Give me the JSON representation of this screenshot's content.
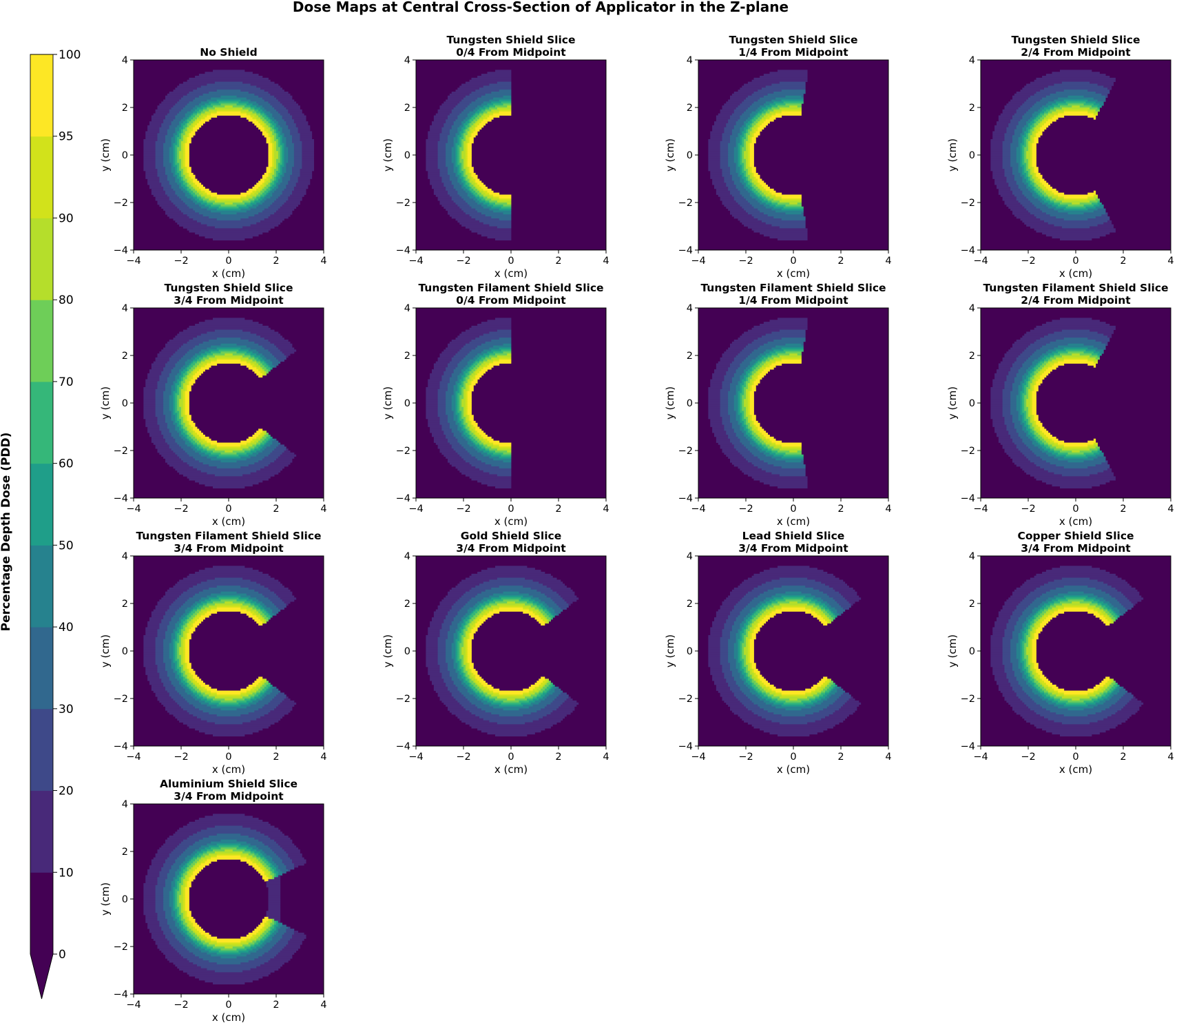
{
  "chart_data": {
    "type": "heatmap",
    "title": "Dose Maps at Central Cross-Section of Applicator in the Z-plane",
    "xlabel": "x (cm)",
    "ylabel": "y (cm)",
    "xlim": [
      -4,
      4
    ],
    "ylim": [
      -4,
      4
    ],
    "xticks": [
      -4,
      -2,
      0,
      2,
      4
    ],
    "yticks": [
      -4,
      -2,
      0,
      2,
      4
    ],
    "tick_labels": [
      "−4",
      "−2",
      "0",
      "2",
      "4"
    ],
    "colorbar": {
      "label": "Percentage Depth Dose (PDD)",
      "levels": [
        0,
        10,
        20,
        30,
        40,
        50,
        60,
        70,
        80,
        90,
        95,
        100
      ],
      "tick_labels": [
        "0",
        "10",
        "20",
        "30",
        "40",
        "50",
        "60",
        "70",
        "80",
        "90",
        "95",
        "100"
      ],
      "colors": [
        "#440154",
        "#482979",
        "#3e4989",
        "#31688e",
        "#26828e",
        "#1f9e89",
        "#35b779",
        "#6ece58",
        "#b5de2b",
        "#d2e21b",
        "#fde725"
      ],
      "extend": "min",
      "placement": "left"
    },
    "applicator_radius_cm": 1.7,
    "panels": [
      {
        "title_lines": [
          "No Shield"
        ],
        "shield": "none",
        "cut_x_cm": null,
        "shadow_angle_deg": 0
      },
      {
        "title_lines": [
          "Tungsten Shield Slice",
          "0/4 From Midpoint"
        ],
        "shield": "tungsten",
        "cut_x_cm": 0.0,
        "shadow_angle_deg": 90
      },
      {
        "title_lines": [
          "Tungsten Shield Slice",
          "1/4 From Midpoint"
        ],
        "shield": "tungsten",
        "cut_x_cm": 0.35,
        "shadow_angle_deg": 80
      },
      {
        "title_lines": [
          "Tungsten Shield Slice",
          "2/4 From Midpoint"
        ],
        "shield": "tungsten",
        "cut_x_cm": 0.8,
        "shadow_angle_deg": 62
      },
      {
        "title_lines": [
          "Tungsten Shield Slice",
          "3/4 From Midpoint"
        ],
        "shield": "tungsten",
        "cut_x_cm": 1.35,
        "shadow_angle_deg": 38
      },
      {
        "title_lines": [
          "Tungsten Filament Shield Slice",
          "0/4 From Midpoint"
        ],
        "shield": "tungsten filament",
        "cut_x_cm": 0.0,
        "shadow_angle_deg": 90
      },
      {
        "title_lines": [
          "Tungsten Filament Shield Slice",
          "1/4 From Midpoint"
        ],
        "shield": "tungsten filament",
        "cut_x_cm": 0.35,
        "shadow_angle_deg": 80
      },
      {
        "title_lines": [
          "Tungsten Filament Shield Slice",
          "2/4 From Midpoint"
        ],
        "shield": "tungsten filament",
        "cut_x_cm": 0.8,
        "shadow_angle_deg": 62
      },
      {
        "title_lines": [
          "Tungsten Filament Shield Slice",
          "3/4 From Midpoint"
        ],
        "shield": "tungsten filament",
        "cut_x_cm": 1.35,
        "shadow_angle_deg": 38
      },
      {
        "title_lines": [
          "Gold Shield Slice",
          "3/4 From Midpoint"
        ],
        "shield": "gold",
        "cut_x_cm": 1.35,
        "shadow_angle_deg": 38
      },
      {
        "title_lines": [
          "Lead Shield Slice",
          "3/4 From Midpoint"
        ],
        "shield": "lead",
        "cut_x_cm": 1.35,
        "shadow_angle_deg": 38
      },
      {
        "title_lines": [
          "Copper Shield Slice",
          "3/4 From Midpoint"
        ],
        "shield": "copper",
        "cut_x_cm": 1.35,
        "shadow_angle_deg": 38
      },
      {
        "title_lines": [
          "Aluminium Shield Slice",
          "3/4 From Midpoint"
        ],
        "shield": "aluminium",
        "cut_x_cm": 1.35,
        "shadow_angle_deg": 25,
        "partial_transmission": true
      }
    ]
  }
}
